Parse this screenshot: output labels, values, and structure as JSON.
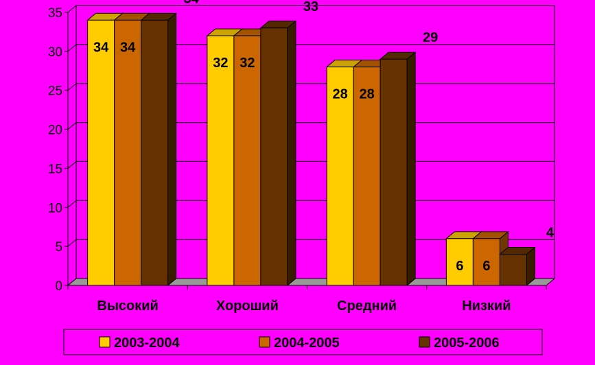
{
  "chart_data": {
    "type": "bar",
    "categories": [
      "Высокий",
      "Хороший",
      "Средний",
      "Низкий"
    ],
    "series": [
      {
        "name": "2003-2004",
        "values": [
          34,
          32,
          28,
          6
        ],
        "color": "#ffcc00"
      },
      {
        "name": "2004-2005",
        "values": [
          34,
          32,
          28,
          6
        ],
        "color": "#cc6600"
      },
      {
        "name": "2005-2006",
        "values": [
          34,
          33,
          29,
          4
        ],
        "color": "#663300"
      }
    ],
    "yticks": [
      "0",
      "5",
      "10",
      "15",
      "20",
      "25",
      "30",
      "35"
    ],
    "ylim": [
      0,
      35
    ],
    "grid": true,
    "legend_position": "bottom",
    "three_d": true
  }
}
